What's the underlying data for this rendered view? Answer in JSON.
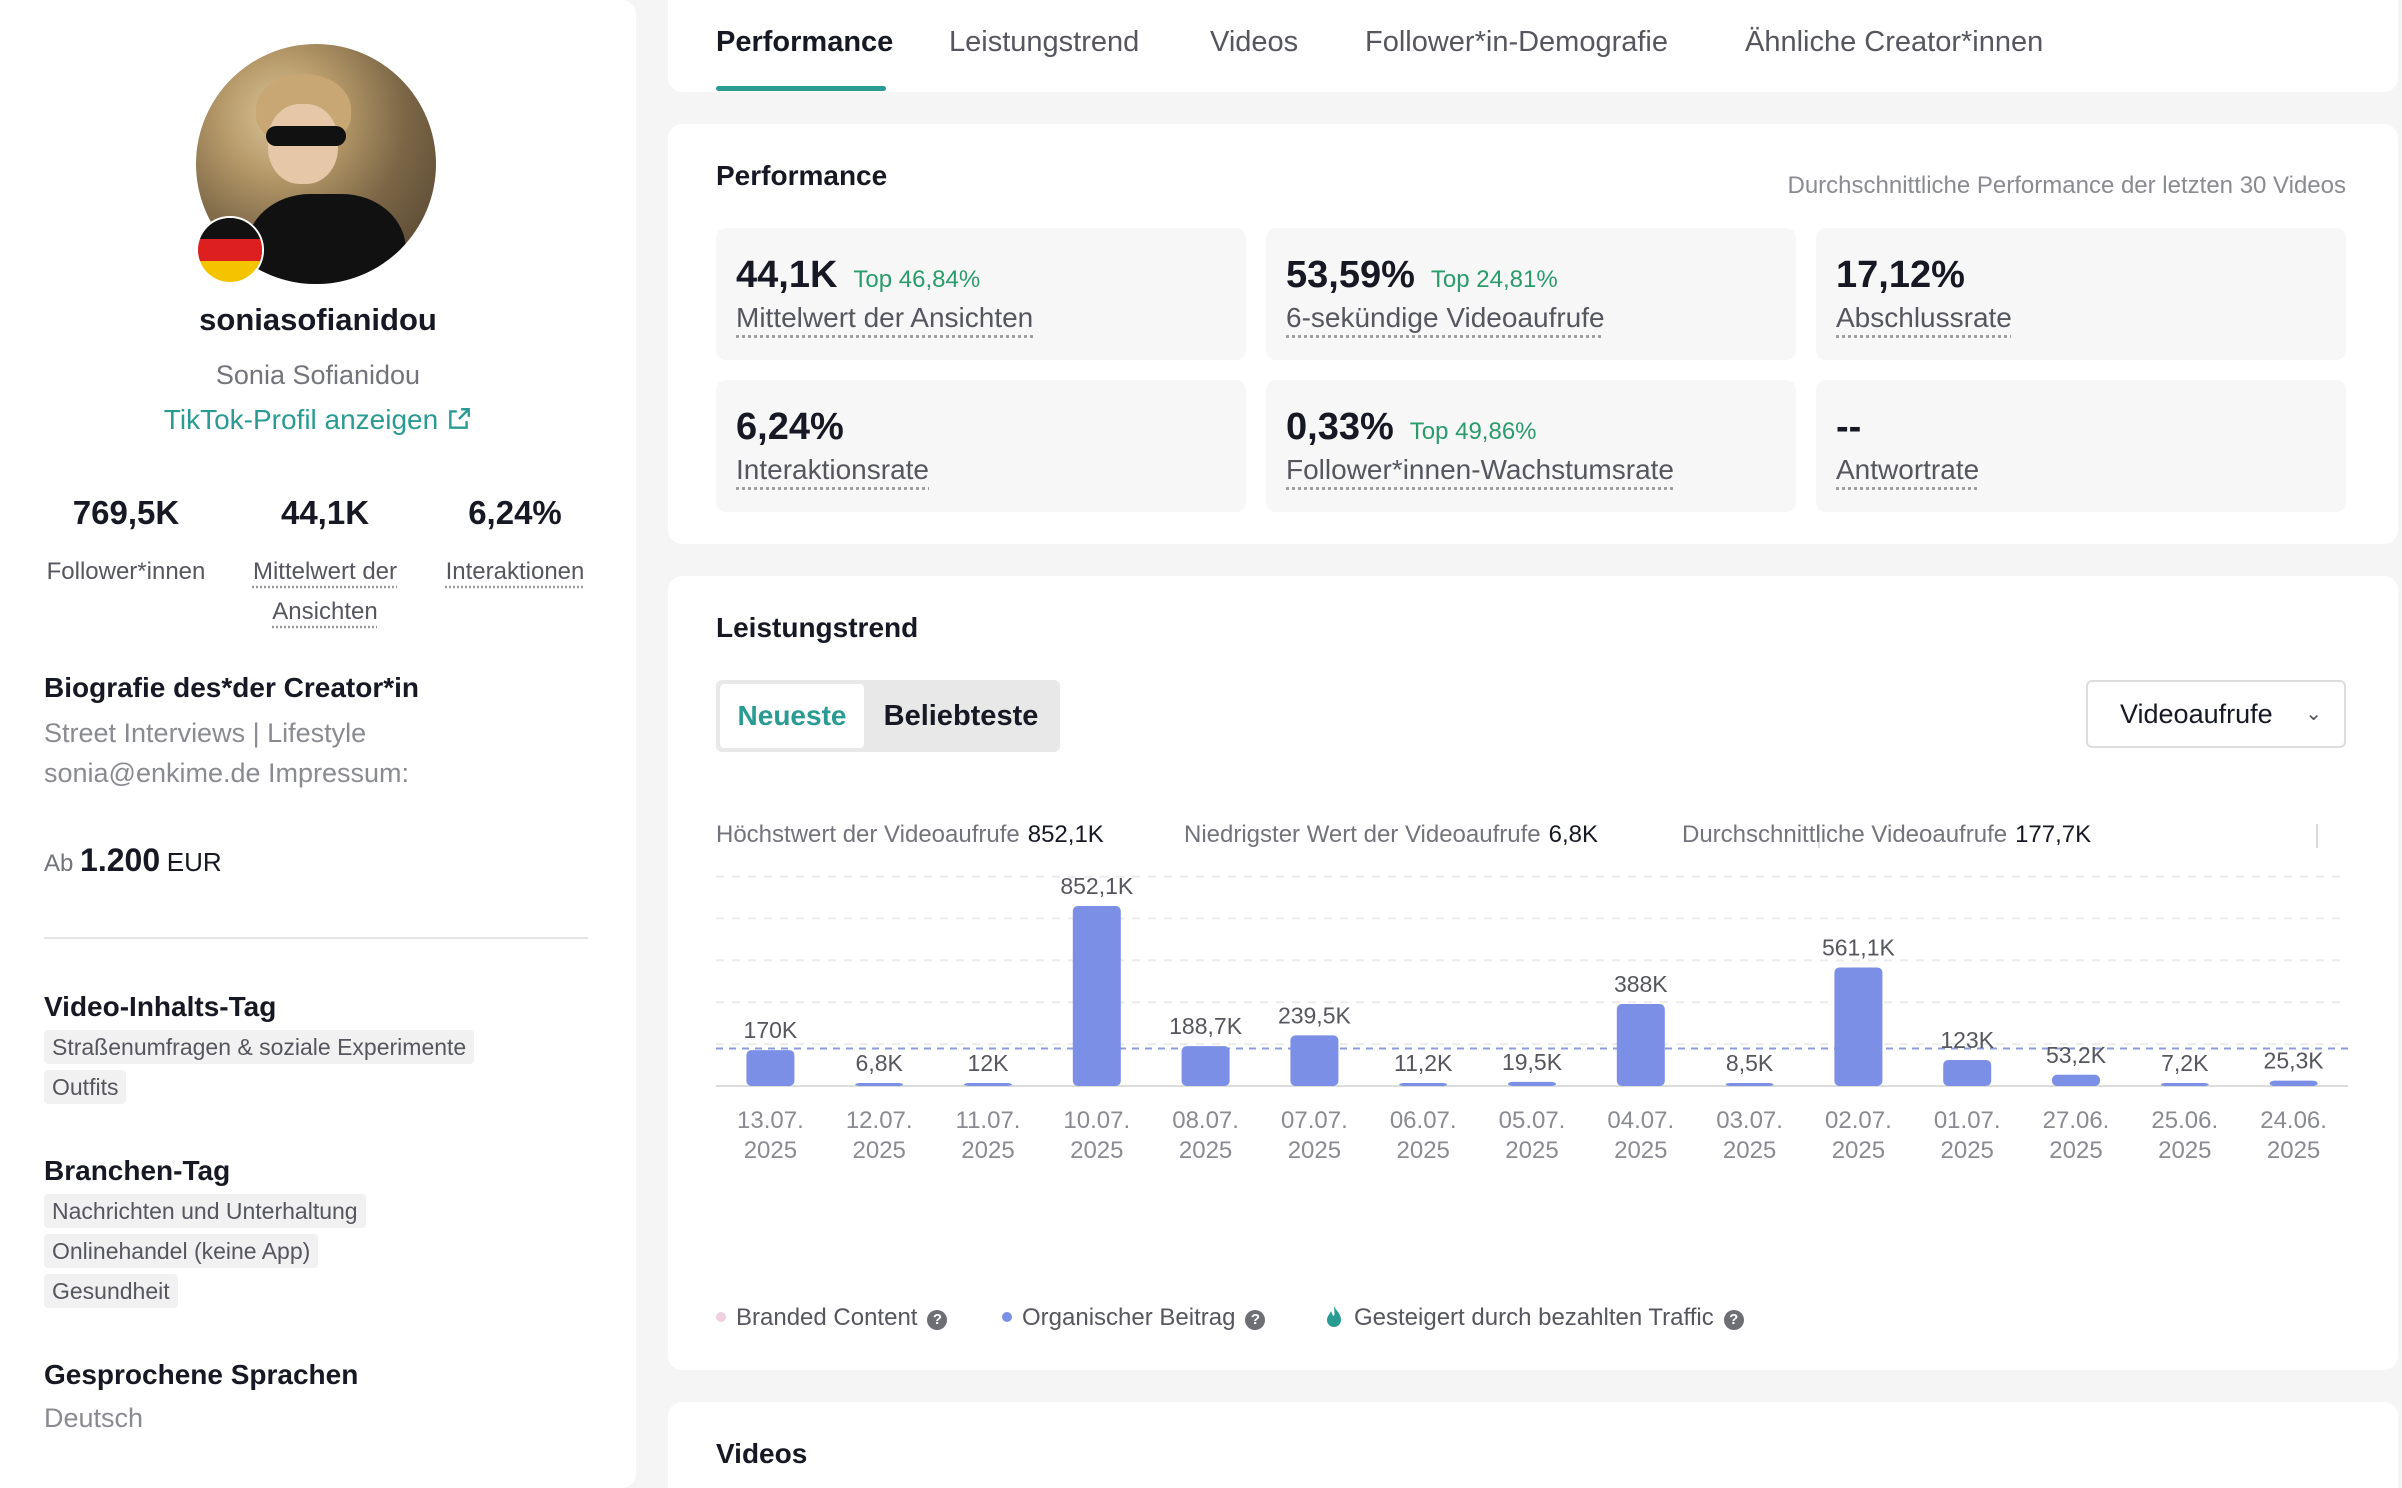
{
  "profile": {
    "username": "soniasofianidou",
    "real_name": "Sonia Sofianidou",
    "tiktok_link": "TikTok-Profil anzeigen",
    "flag": "germany-flag-icon",
    "stats": [
      {
        "value": "769,5K",
        "label": "Follower*innen"
      },
      {
        "value": "44,1K",
        "label": "Mittelwert der Ansichten"
      },
      {
        "value": "6,24%",
        "label": "Interaktionen"
      }
    ],
    "bio_title": "Biografie des*der Creator*in",
    "bio_lines": [
      "Street Interviews | Lifestyle",
      "sonia@enkime.de Impressum:"
    ],
    "price_prefix": "Ab",
    "price_value": "1.200",
    "price_currency": "EUR",
    "content_tag_title": "Video-Inhalts-Tag",
    "content_tags": [
      "Straßenumfragen & soziale Experimente",
      "Outfits"
    ],
    "industry_tag_title": "Branchen-Tag",
    "industry_tags": [
      "Nachrichten und Unterhaltung",
      "Onlinehandel (keine App)",
      "Gesundheit"
    ],
    "languages_title": "Gesprochene Sprachen",
    "languages": "Deutsch"
  },
  "tabs": [
    "Performance",
    "Leistungstrend",
    "Videos",
    "Follower*in-Demografie",
    "Ähnliche Creator*innen"
  ],
  "performance": {
    "title": "Performance",
    "note": "Durchschnittliche Performance der letzten 30 Videos",
    "metrics": [
      {
        "value": "44,1K",
        "top": "Top 46,84%",
        "label": "Mittelwert der Ansichten"
      },
      {
        "value": "53,59%",
        "top": "Top 24,81%",
        "label": "6-sekündige Videoaufrufe"
      },
      {
        "value": "17,12%",
        "top": "",
        "label": "Abschlussrate"
      },
      {
        "value": "6,24%",
        "top": "",
        "label": "Interaktionsrate"
      },
      {
        "value": "0,33%",
        "top": "Top 49,86%",
        "label": "Follower*innen-Wachstumsrate"
      },
      {
        "value": "--",
        "top": "",
        "label": "Antwortrate"
      }
    ]
  },
  "trend": {
    "title": "Leistungstrend",
    "toggle_newest": "Neueste",
    "toggle_popular": "Beliebteste",
    "select_value": "Videoaufrufe",
    "summary": [
      {
        "label": "Höchstwert der Videoaufrufe",
        "value": "852,1K"
      },
      {
        "label": "Niedrigster Wert der Videoaufrufe",
        "value": "6,8K"
      },
      {
        "label": "Durchschnittliche Videoaufrufe",
        "value": "177,7K"
      }
    ],
    "legend": [
      {
        "label": "Branded Content",
        "color": "#f0cfe0"
      },
      {
        "label": "Organischer Beitrag",
        "color": "#7b8fe6"
      },
      {
        "label": "Gesteigert durch bezahlten Traffic",
        "color": "#2a9b93"
      }
    ]
  },
  "chart_data": {
    "type": "bar",
    "categories": [
      "13.07. 2025",
      "12.07. 2025",
      "11.07. 2025",
      "10.07. 2025",
      "08.07. 2025",
      "07.07. 2025",
      "06.07. 2025",
      "05.07. 2025",
      "04.07. 2025",
      "03.07. 2025",
      "02.07. 2025",
      "01.07. 2025",
      "27.06. 2025",
      "25.06. 2025",
      "24.06. 2025"
    ],
    "values": [
      170,
      6.8,
      12,
      852.1,
      188.7,
      239.5,
      11.2,
      19.5,
      388,
      8.5,
      561.1,
      123,
      53.2,
      7.2,
      25.3
    ],
    "labels": [
      "170K",
      "6,8K",
      "12K",
      "852,1K",
      "188,7K",
      "239,5K",
      "11,2K",
      "19,5K",
      "388K",
      "8,5K",
      "561,1K",
      "123K",
      "53,2K",
      "7,2K",
      "25,3K"
    ],
    "average": 177.7,
    "ylim": [
      0,
      852.1
    ],
    "color": "#7b8fe6",
    "grid": true
  },
  "videos": {
    "title": "Videos"
  }
}
